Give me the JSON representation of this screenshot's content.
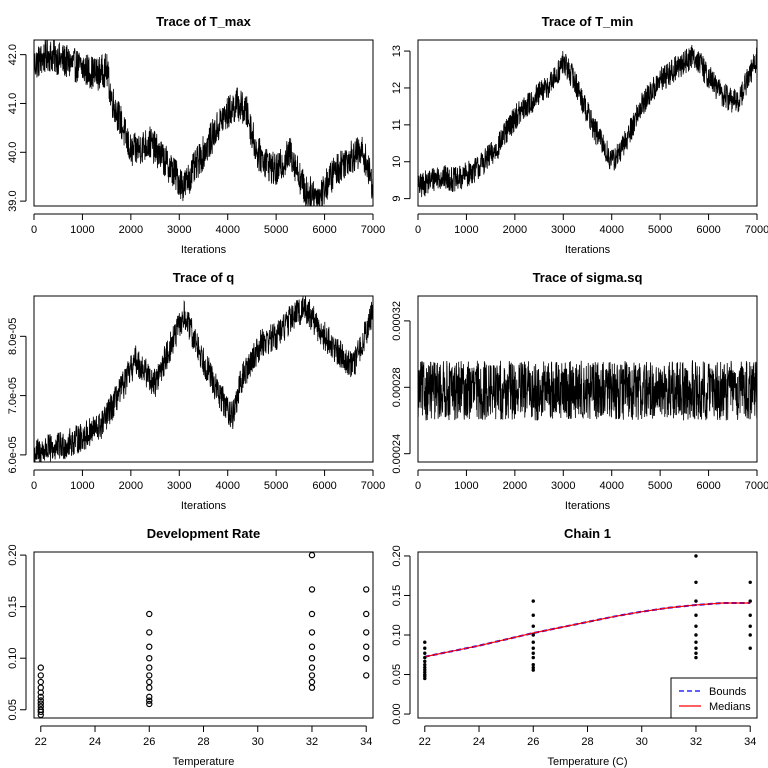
{
  "chart_data": [
    {
      "type": "line",
      "title": "Trace of T_max",
      "xlabel": "Iterations",
      "ylabel": "",
      "xlim": [
        0,
        7000
      ],
      "ylim": [
        38.9,
        42.3
      ],
      "xticks": [
        0,
        1000,
        2000,
        3000,
        4000,
        5000,
        6000,
        7000
      ],
      "yticks": [
        39.0,
        40.0,
        41.0,
        42.0
      ],
      "ytick_labels": [
        "39.0",
        "40.0",
        "41.0",
        "42.0"
      ],
      "trend_x": [
        0,
        300,
        800,
        1300,
        1500,
        1600,
        1800,
        2000,
        2400,
        2800,
        3100,
        3500,
        3900,
        4200,
        4400,
        4600,
        5000,
        5300,
        5600,
        5900,
        6200,
        6500,
        6800,
        7000
      ],
      "trend_y": [
        41.8,
        42.0,
        41.8,
        41.6,
        41.7,
        41.1,
        40.6,
        40.0,
        40.2,
        39.7,
        39.3,
        40.0,
        40.7,
        41.0,
        40.8,
        40.0,
        39.6,
        40.0,
        39.2,
        39.1,
        39.6,
        39.9,
        40.0,
        39.3
      ],
      "noise_amplitude": 0.35
    },
    {
      "type": "line",
      "title": "Trace of T_min",
      "xlabel": "Iterations",
      "ylabel": "",
      "xlim": [
        0,
        7000
      ],
      "ylim": [
        8.8,
        13.3
      ],
      "xticks": [
        0,
        1000,
        2000,
        3000,
        4000,
        5000,
        6000,
        7000
      ],
      "yticks": [
        9,
        10,
        11,
        12,
        13
      ],
      "ytick_labels": [
        "9",
        "10",
        "11",
        "12",
        "13"
      ],
      "trend_x": [
        0,
        400,
        800,
        1200,
        1600,
        2000,
        2400,
        2800,
        3000,
        3200,
        3600,
        4000,
        4200,
        4600,
        5000,
        5300,
        5700,
        6000,
        6300,
        6600,
        7000
      ],
      "trend_y": [
        9.3,
        9.6,
        9.5,
        9.8,
        10.3,
        11.2,
        11.7,
        12.2,
        12.7,
        12.3,
        11.0,
        10.0,
        10.3,
        11.5,
        12.2,
        12.5,
        12.9,
        12.3,
        11.8,
        11.6,
        12.8
      ],
      "noise_amplitude": 0.35
    },
    {
      "type": "line",
      "title": "Trace of q",
      "xlabel": "Iterations",
      "ylabel": "",
      "xlim": [
        0,
        7000
      ],
      "ylim": [
        5.88e-05,
        8.68e-05
      ],
      "xticks": [
        0,
        1000,
        2000,
        3000,
        4000,
        5000,
        6000,
        7000
      ],
      "yticks": [
        6e-05,
        7e-05,
        8e-05
      ],
      "ytick_labels": [
        "6.0e-05",
        "7.0e-05",
        "8.0e-05"
      ],
      "trend_x": [
        0,
        300,
        600,
        1000,
        1400,
        1800,
        2100,
        2500,
        2800,
        3100,
        3500,
        3800,
        4100,
        4300,
        4700,
        5000,
        5300,
        5600,
        5900,
        6200,
        6600,
        7000
      ],
      "trend_y": [
        6.02e-05,
        6.1e-05,
        6.15e-05,
        6.3e-05,
        6.5e-05,
        7.1e-05,
        7.6e-05,
        7.2e-05,
        7.8e-05,
        8.35e-05,
        7.6e-05,
        7.05e-05,
        6.65e-05,
        7.3e-05,
        7.9e-05,
        8e-05,
        8.3e-05,
        8.5e-05,
        8.1e-05,
        7.8e-05,
        7.5e-05,
        8.4e-05
      ],
      "noise_amplitude": 2.5e-06
    },
    {
      "type": "line",
      "title": "Trace of sigma.sq",
      "xlabel": "Iterations",
      "ylabel": "",
      "xlim": [
        0,
        7000
      ],
      "ylim": [
        0.000235,
        0.000335
      ],
      "xticks": [
        0,
        1000,
        2000,
        3000,
        4000,
        5000,
        6000,
        7000
      ],
      "yticks": [
        0.00024,
        0.00028,
        0.00032
      ],
      "ytick_labels": [
        "0.00024",
        "0.00028",
        "0.00032"
      ],
      "trend_x": [
        0,
        7000
      ],
      "trend_y": [
        0.000278,
        0.000278
      ],
      "noise_amplitude": 1.8e-05
    },
    {
      "type": "scatter",
      "title": "Development Rate",
      "xlabel": "Temperature",
      "ylabel": "",
      "marker": "open-circle",
      "xlim": [
        21.75,
        34.25
      ],
      "ylim": [
        0.042,
        0.203
      ],
      "xticks": [
        22,
        24,
        26,
        28,
        30,
        32,
        34
      ],
      "yticks": [
        0.05,
        0.1,
        0.15,
        0.2
      ],
      "ytick_labels": [
        "0.05",
        "0.10",
        "0.15",
        "0.20"
      ],
      "points": [
        [
          22,
          0.045
        ],
        [
          22,
          0.048
        ],
        [
          22,
          0.05
        ],
        [
          22,
          0.053
        ],
        [
          22,
          0.056
        ],
        [
          22,
          0.059
        ],
        [
          22,
          0.0625
        ],
        [
          22,
          0.0667
        ],
        [
          22,
          0.0714
        ],
        [
          22,
          0.0769
        ],
        [
          22,
          0.0833
        ],
        [
          22,
          0.0909
        ],
        [
          26,
          0.0556
        ],
        [
          26,
          0.0588
        ],
        [
          26,
          0.0625
        ],
        [
          26,
          0.0714
        ],
        [
          26,
          0.0769
        ],
        [
          26,
          0.0833
        ],
        [
          26,
          0.0909
        ],
        [
          26,
          0.1
        ],
        [
          26,
          0.1111
        ],
        [
          26,
          0.125
        ],
        [
          26,
          0.1429
        ],
        [
          32,
          0.0714
        ],
        [
          32,
          0.0769
        ],
        [
          32,
          0.0833
        ],
        [
          32,
          0.0909
        ],
        [
          32,
          0.1
        ],
        [
          32,
          0.1111
        ],
        [
          32,
          0.125
        ],
        [
          32,
          0.1429
        ],
        [
          32,
          0.1667
        ],
        [
          32,
          0.2
        ],
        [
          34,
          0.0833
        ],
        [
          34,
          0.1
        ],
        [
          34,
          0.1111
        ],
        [
          34,
          0.125
        ],
        [
          34,
          0.1429
        ],
        [
          34,
          0.1667
        ]
      ]
    },
    {
      "type": "scatter",
      "title": "Chain 1",
      "xlabel": "Temperature (C)",
      "ylabel": "",
      "marker": "filled-dot",
      "xlim": [
        21.75,
        34.25
      ],
      "ylim": [
        -0.005,
        0.205
      ],
      "xticks": [
        22,
        24,
        26,
        28,
        30,
        32,
        34
      ],
      "yticks": [
        0.0,
        0.05,
        0.1,
        0.15,
        0.2
      ],
      "ytick_labels": [
        "0.00",
        "0.05",
        "0.10",
        "0.15",
        "0.20"
      ],
      "points": [
        [
          22,
          0.045
        ],
        [
          22,
          0.048
        ],
        [
          22,
          0.05
        ],
        [
          22,
          0.053
        ],
        [
          22,
          0.056
        ],
        [
          22,
          0.059
        ],
        [
          22,
          0.0625
        ],
        [
          22,
          0.0667
        ],
        [
          22,
          0.0714
        ],
        [
          22,
          0.0769
        ],
        [
          22,
          0.0833
        ],
        [
          22,
          0.0909
        ],
        [
          26,
          0.0556
        ],
        [
          26,
          0.0588
        ],
        [
          26,
          0.0625
        ],
        [
          26,
          0.0714
        ],
        [
          26,
          0.0769
        ],
        [
          26,
          0.0833
        ],
        [
          26,
          0.0909
        ],
        [
          26,
          0.1
        ],
        [
          26,
          0.1111
        ],
        [
          26,
          0.125
        ],
        [
          26,
          0.1429
        ],
        [
          32,
          0.0714
        ],
        [
          32,
          0.0769
        ],
        [
          32,
          0.0833
        ],
        [
          32,
          0.0909
        ],
        [
          32,
          0.1
        ],
        [
          32,
          0.1111
        ],
        [
          32,
          0.125
        ],
        [
          32,
          0.1429
        ],
        [
          32,
          0.1667
        ],
        [
          32,
          0.2
        ],
        [
          34,
          0.0833
        ],
        [
          34,
          0.1
        ],
        [
          34,
          0.1111
        ],
        [
          34,
          0.125
        ],
        [
          34,
          0.1429
        ],
        [
          34,
          0.1667
        ]
      ],
      "series": [
        {
          "name": "Bounds",
          "color": "#0000ff",
          "dash": true,
          "x": [
            22,
            23,
            24,
            25,
            26,
            27,
            28,
            29,
            30,
            31,
            32,
            33,
            34
          ],
          "y": [
            0.073,
            0.08,
            0.087,
            0.095,
            0.103,
            0.11,
            0.117,
            0.124,
            0.13,
            0.135,
            0.1385,
            0.141,
            0.141
          ]
        },
        {
          "name": "Bounds",
          "color": "#0000ff",
          "dash": true,
          "x": [
            22,
            23,
            24,
            25,
            26,
            27,
            28,
            29,
            30,
            31,
            32,
            33,
            34
          ],
          "y": [
            0.072,
            0.079,
            0.086,
            0.094,
            0.102,
            0.109,
            0.116,
            0.123,
            0.129,
            0.134,
            0.1375,
            0.14,
            0.14
          ]
        },
        {
          "name": "Medians",
          "color": "#ff0000",
          "dash": false,
          "x": [
            22,
            23,
            24,
            25,
            26,
            27,
            28,
            29,
            30,
            31,
            32,
            33,
            34
          ],
          "y": [
            0.0725,
            0.0795,
            0.0865,
            0.0945,
            0.1025,
            0.1095,
            0.1165,
            0.1235,
            0.1295,
            0.1345,
            0.138,
            0.1405,
            0.1405
          ]
        }
      ],
      "legend": {
        "placement": "bottom-right",
        "entries": [
          {
            "label": "Bounds",
            "color": "#0000ff",
            "dash": true
          },
          {
            "label": "Medians",
            "color": "#ff0000",
            "dash": false
          }
        ]
      }
    }
  ]
}
